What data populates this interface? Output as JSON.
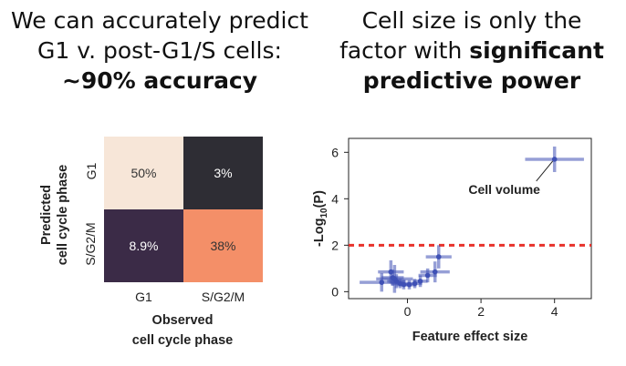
{
  "left_heading": {
    "line1": "We can accurately predict",
    "line2": "G1 v. post-G1/S cells:",
    "line3": "~90% accuracy"
  },
  "right_heading": {
    "line1": "Cell size is only the",
    "line2_plain": "factor with ",
    "line2_bold": "significant",
    "line3": "predictive power"
  },
  "confusion_matrix": {
    "y_title_line1": "Predicted",
    "y_title_line2": "cell cycle phase",
    "x_title_line1": "Observed",
    "x_title_line2": "cell cycle phase",
    "row_labels": [
      "G1",
      "S/G2/M"
    ],
    "col_labels": [
      "G1",
      "S/G2/M"
    ],
    "cells": [
      {
        "label": "50%",
        "bg": "#f7e6d8",
        "fg": "#333333"
      },
      {
        "label": "3%",
        "bg": "#2e2d34",
        "fg": "#ffffff"
      },
      {
        "label": "8.9%",
        "bg": "#3b2b47",
        "fg": "#ffffff"
      },
      {
        "label": "38%",
        "bg": "#f48f68",
        "fg": "#333333"
      }
    ]
  },
  "chart_data": {
    "type": "scatter",
    "xlabel": "Feature effect size",
    "ylabel_prefix": "-Log",
    "ylabel_sub": "10",
    "ylabel_suffix": "(P)",
    "xlim": [
      -1.6,
      5
    ],
    "ylim": [
      -0.3,
      6.6
    ],
    "x_ticks": [
      0,
      2,
      4
    ],
    "y_ticks": [
      0,
      2,
      4,
      6
    ],
    "threshold": 2,
    "threshold_color": "#e8322b",
    "point_color": "#3f51b5",
    "annotation": "Cell volume",
    "points": [
      {
        "x": 4.0,
        "y": 5.7,
        "xerr": 0.8,
        "yerr": 0.55
      },
      {
        "x": 0.85,
        "y": 1.5,
        "xerr": 0.35,
        "yerr": 0.5
      },
      {
        "x": 0.75,
        "y": 0.85,
        "xerr": 0.4,
        "yerr": 0.45
      },
      {
        "x": 0.55,
        "y": 0.7,
        "xerr": 0.25,
        "yerr": 0.3
      },
      {
        "x": 0.35,
        "y": 0.45,
        "xerr": 0.2,
        "yerr": 0.25
      },
      {
        "x": 0.2,
        "y": 0.35,
        "xerr": 0.2,
        "yerr": 0.2
      },
      {
        "x": 0.05,
        "y": 0.3,
        "xerr": 0.2,
        "yerr": 0.2
      },
      {
        "x": -0.1,
        "y": 0.3,
        "xerr": 0.2,
        "yerr": 0.2
      },
      {
        "x": -0.2,
        "y": 0.35,
        "xerr": 0.25,
        "yerr": 0.2
      },
      {
        "x": -0.3,
        "y": 0.45,
        "xerr": 0.25,
        "yerr": 0.3
      },
      {
        "x": -0.4,
        "y": 0.6,
        "xerr": 0.3,
        "yerr": 0.35
      },
      {
        "x": -0.45,
        "y": 0.85,
        "xerr": 0.35,
        "yerr": 0.5
      },
      {
        "x": -0.7,
        "y": 0.4,
        "xerr": 0.6,
        "yerr": 0.4
      },
      {
        "x": -0.35,
        "y": 0.55,
        "xerr": 0.5,
        "yerr": 0.6
      }
    ]
  }
}
